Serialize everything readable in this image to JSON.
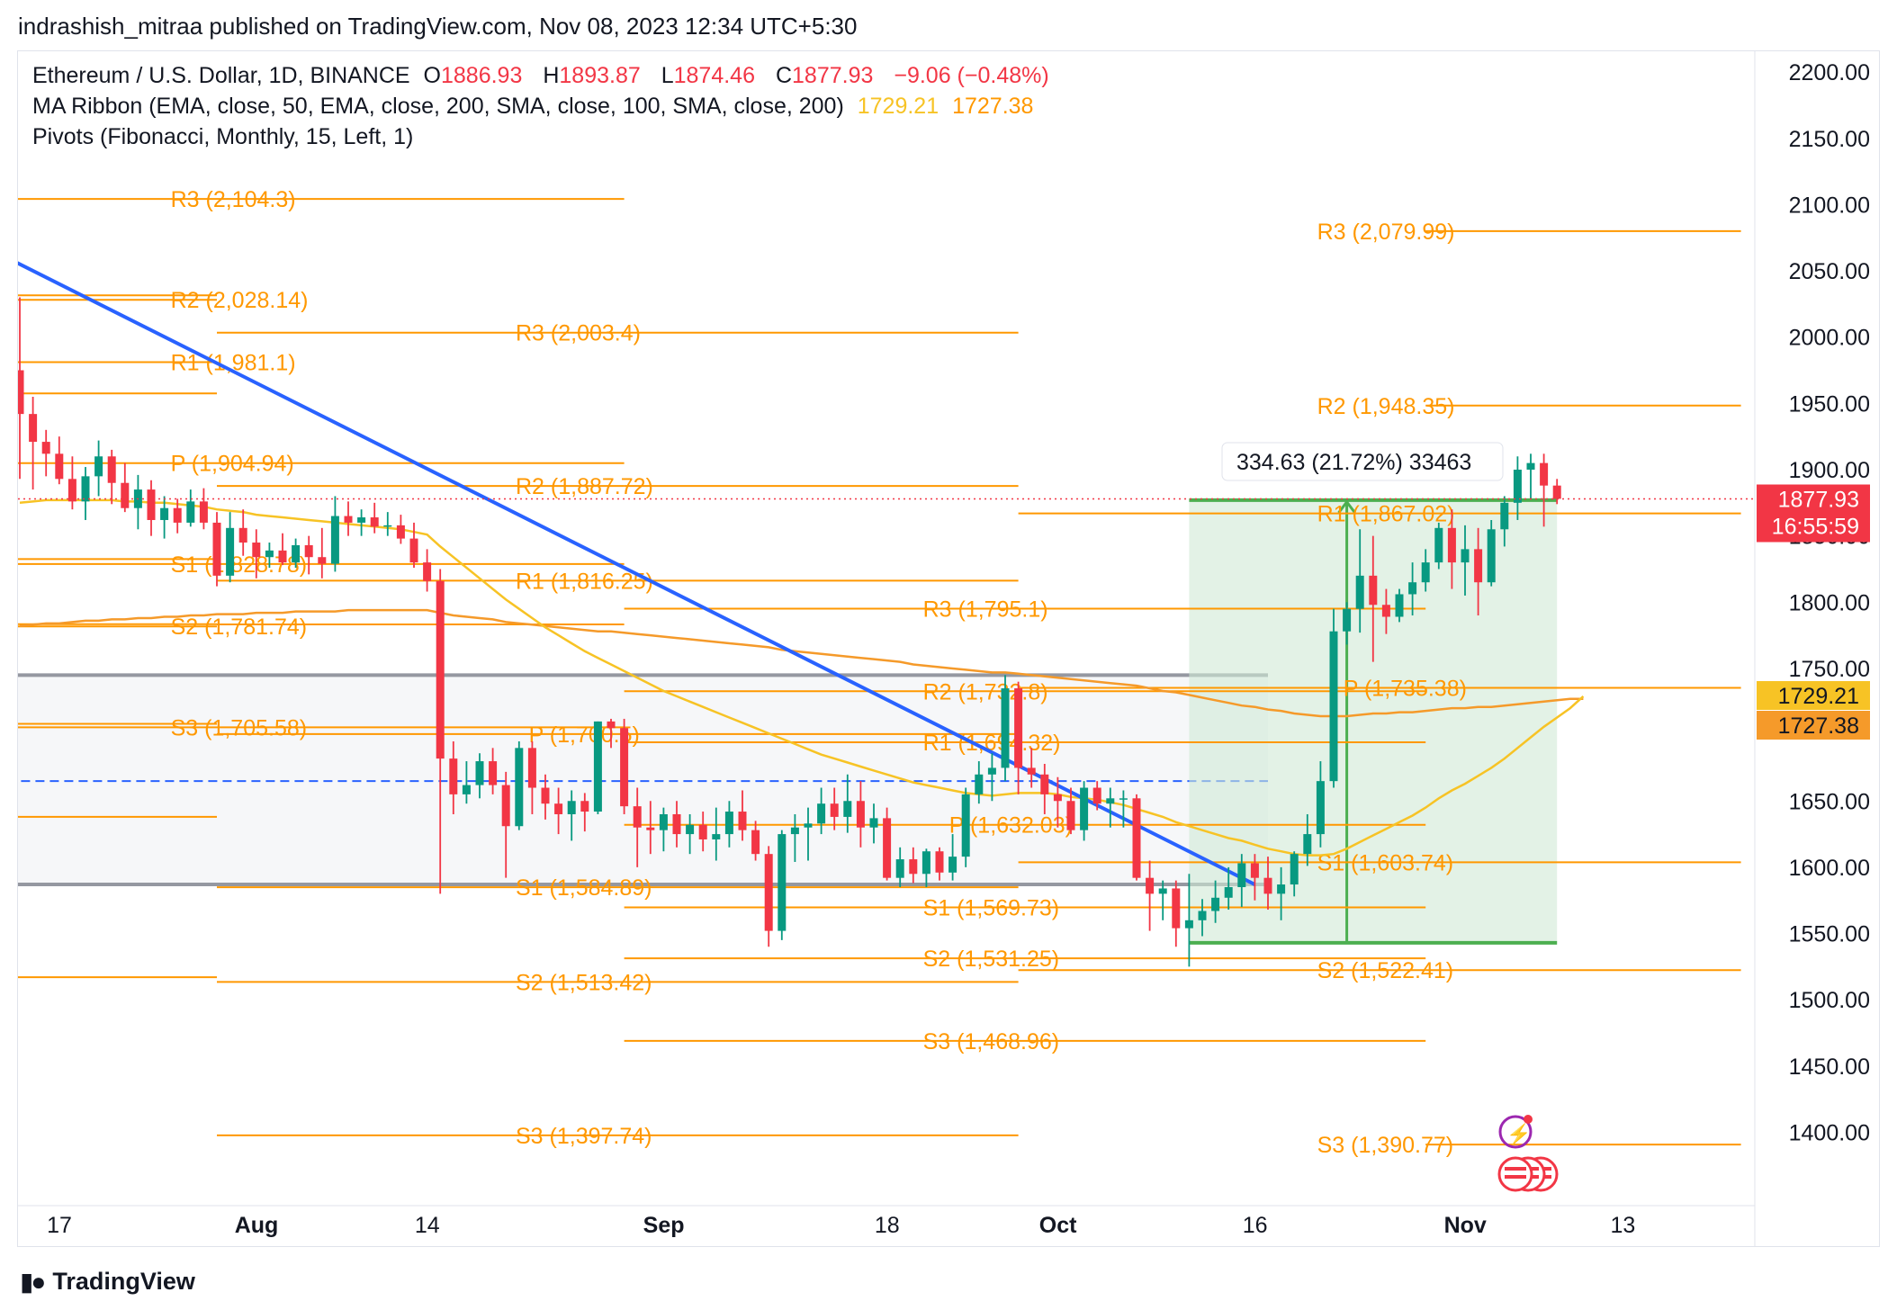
{
  "publisher_line": "indrashish_mitraa published on TradingView.com, Nov 08, 2023 12:34 UTC+5:30",
  "legend": {
    "symbol": "Ethereum / U.S. Dollar, 1D, BINANCE",
    "o_key": "O",
    "o_val": "1886.93",
    "h_key": "H",
    "h_val": "1893.87",
    "l_key": "L",
    "l_val": "1874.46",
    "c_key": "C",
    "c_val": "1877.93",
    "change": "−9.06 (−0.48%)",
    "ma_ribbon": "MA Ribbon (EMA, close, 50, EMA, close, 200, SMA, close, 100, SMA, close, 200)",
    "ma_val1": "1729.21",
    "ma_val2": "1727.38",
    "pivots": "Pivots (Fibonacci, Monthly, 15, Left, 1)"
  },
  "footer": {
    "brand": "TradingView"
  },
  "colors": {
    "up": "#089981",
    "down": "#f23645",
    "pivot": "#ff9800",
    "trendline": "#2962ff",
    "ema50": "#f7c325",
    "ema200": "#f59a2a",
    "range_box": "#9598a1",
    "position_fill": "#d1ead6",
    "position_line": "#4caf50",
    "price_tag": "#f23645"
  },
  "chart_data": {
    "type": "candlestick",
    "ylim": [
      1340,
      2225
    ],
    "y_ticks": [
      "2200.00",
      "2150.00",
      "2100.00",
      "2050.00",
      "2000.00",
      "1950.00",
      "1900.00",
      "1850.00",
      "1800.00",
      "1750.00",
      "1650.00",
      "1600.00",
      "1550.00",
      "1500.00",
      "1450.00",
      "1400.00"
    ],
    "x_ticks": [
      {
        "label": "17",
        "idx": 0,
        "bold": false
      },
      {
        "label": "Aug",
        "idx": 15,
        "bold": true
      },
      {
        "label": "14",
        "idx": 28,
        "bold": false
      },
      {
        "label": "Sep",
        "idx": 46,
        "bold": true
      },
      {
        "label": "18",
        "idx": 63,
        "bold": false
      },
      {
        "label": "Oct",
        "idx": 76,
        "bold": true
      },
      {
        "label": "16",
        "idx": 91,
        "bold": false
      },
      {
        "label": "Nov",
        "idx": 107,
        "bold": true
      },
      {
        "label": "13",
        "idx": 119,
        "bold": false
      }
    ],
    "candles": [
      [
        1975,
        2030,
        1893,
        1942
      ],
      [
        1942,
        1955,
        1885,
        1921
      ],
      [
        1921,
        1930,
        1895,
        1912
      ],
      [
        1912,
        1925,
        1889,
        1893
      ],
      [
        1893,
        1910,
        1870,
        1876
      ],
      [
        1876,
        1902,
        1862,
        1895
      ],
      [
        1895,
        1922,
        1880,
        1910
      ],
      [
        1910,
        1915,
        1874,
        1890
      ],
      [
        1890,
        1905,
        1868,
        1871
      ],
      [
        1871,
        1896,
        1855,
        1885
      ],
      [
        1885,
        1892,
        1850,
        1862
      ],
      [
        1862,
        1880,
        1848,
        1871
      ],
      [
        1871,
        1878,
        1852,
        1860
      ],
      [
        1860,
        1885,
        1857,
        1876
      ],
      [
        1876,
        1886,
        1855,
        1860
      ],
      [
        1860,
        1868,
        1812,
        1820
      ],
      [
        1820,
        1868,
        1815,
        1856
      ],
      [
        1856,
        1870,
        1835,
        1845
      ],
      [
        1845,
        1855,
        1818,
        1834
      ],
      [
        1834,
        1845,
        1826,
        1839
      ],
      [
        1839,
        1852,
        1828,
        1830
      ],
      [
        1830,
        1848,
        1826,
        1843
      ],
      [
        1843,
        1850,
        1821,
        1834
      ],
      [
        1834,
        1856,
        1818,
        1829
      ],
      [
        1829,
        1880,
        1823,
        1865
      ],
      [
        1865,
        1876,
        1850,
        1860
      ],
      [
        1860,
        1870,
        1850,
        1864
      ],
      [
        1864,
        1875,
        1852,
        1857
      ],
      [
        1857,
        1868,
        1850,
        1858
      ],
      [
        1858,
        1866,
        1844,
        1848
      ],
      [
        1848,
        1860,
        1826,
        1830
      ],
      [
        1830,
        1840,
        1808,
        1816
      ],
      [
        1816,
        1825,
        1580,
        1682
      ],
      [
        1682,
        1695,
        1640,
        1655
      ],
      [
        1655,
        1680,
        1648,
        1662
      ],
      [
        1662,
        1686,
        1652,
        1680
      ],
      [
        1680,
        1690,
        1655,
        1662
      ],
      [
        1662,
        1672,
        1592,
        1631
      ],
      [
        1631,
        1695,
        1628,
        1690
      ],
      [
        1690,
        1695,
        1640,
        1660
      ],
      [
        1660,
        1670,
        1636,
        1648
      ],
      [
        1648,
        1660,
        1625,
        1640
      ],
      [
        1640,
        1658,
        1620,
        1650
      ],
      [
        1650,
        1656,
        1627,
        1642
      ],
      [
        1642,
        1710,
        1640,
        1710
      ],
      [
        1710,
        1712,
        1690,
        1705
      ],
      [
        1705,
        1712,
        1640,
        1646
      ],
      [
        1646,
        1660,
        1600,
        1630
      ],
      [
        1630,
        1650,
        1610,
        1628
      ],
      [
        1628,
        1645,
        1612,
        1640
      ],
      [
        1640,
        1650,
        1615,
        1625
      ],
      [
        1625,
        1640,
        1610,
        1632
      ],
      [
        1632,
        1642,
        1612,
        1621
      ],
      [
        1621,
        1645,
        1605,
        1625
      ],
      [
        1625,
        1650,
        1615,
        1642
      ],
      [
        1642,
        1658,
        1620,
        1628
      ],
      [
        1628,
        1635,
        1605,
        1610
      ],
      [
        1610,
        1616,
        1540,
        1552
      ],
      [
        1552,
        1628,
        1545,
        1625
      ],
      [
        1625,
        1640,
        1604,
        1630
      ],
      [
        1630,
        1645,
        1605,
        1633
      ],
      [
        1633,
        1660,
        1625,
        1648
      ],
      [
        1648,
        1660,
        1628,
        1638
      ],
      [
        1638,
        1670,
        1626,
        1650
      ],
      [
        1650,
        1665,
        1615,
        1630
      ],
      [
        1630,
        1648,
        1618,
        1637
      ],
      [
        1637,
        1645,
        1590,
        1592
      ],
      [
        1592,
        1615,
        1585,
        1606
      ],
      [
        1606,
        1615,
        1588,
        1595
      ],
      [
        1595,
        1614,
        1585,
        1612
      ],
      [
        1612,
        1615,
        1590,
        1596
      ],
      [
        1596,
        1625,
        1590,
        1608
      ],
      [
        1608,
        1660,
        1600,
        1655
      ],
      [
        1655,
        1680,
        1648,
        1670
      ],
      [
        1670,
        1686,
        1650,
        1675
      ],
      [
        1675,
        1745,
        1665,
        1735
      ],
      [
        1735,
        1740,
        1655,
        1675
      ],
      [
        1675,
        1690,
        1660,
        1670
      ],
      [
        1670,
        1678,
        1640,
        1655
      ],
      [
        1655,
        1668,
        1630,
        1650
      ],
      [
        1650,
        1660,
        1625,
        1628
      ],
      [
        1628,
        1665,
        1620,
        1660
      ],
      [
        1660,
        1665,
        1643,
        1648
      ],
      [
        1648,
        1660,
        1630,
        1652
      ],
      [
        1652,
        1658,
        1630,
        1652
      ],
      [
        1652,
        1655,
        1590,
        1592
      ],
      [
        1592,
        1605,
        1552,
        1580
      ],
      [
        1580,
        1590,
        1560,
        1584
      ],
      [
        1584,
        1590,
        1540,
        1554
      ],
      [
        1554,
        1595,
        1525,
        1560
      ],
      [
        1560,
        1576,
        1548,
        1567
      ],
      [
        1567,
        1590,
        1558,
        1577
      ],
      [
        1577,
        1600,
        1568,
        1585
      ],
      [
        1585,
        1610,
        1570,
        1603
      ],
      [
        1603,
        1610,
        1575,
        1592
      ],
      [
        1592,
        1608,
        1568,
        1580
      ],
      [
        1580,
        1600,
        1560,
        1587
      ],
      [
        1587,
        1612,
        1578,
        1610
      ],
      [
        1610,
        1640,
        1601,
        1625
      ],
      [
        1625,
        1680,
        1615,
        1665
      ],
      [
        1665,
        1795,
        1660,
        1778
      ],
      [
        1778,
        1800,
        1768,
        1795
      ],
      [
        1795,
        1855,
        1777,
        1820
      ],
      [
        1820,
        1850,
        1755,
        1798
      ],
      [
        1798,
        1810,
        1776,
        1789
      ],
      [
        1789,
        1810,
        1785,
        1806
      ],
      [
        1806,
        1830,
        1790,
        1815
      ],
      [
        1815,
        1840,
        1808,
        1830
      ],
      [
        1830,
        1860,
        1825,
        1856
      ],
      [
        1856,
        1870,
        1810,
        1830
      ],
      [
        1830,
        1858,
        1805,
        1840
      ],
      [
        1840,
        1856,
        1790,
        1815
      ],
      [
        1815,
        1862,
        1812,
        1855
      ],
      [
        1855,
        1880,
        1842,
        1875
      ],
      [
        1875,
        1910,
        1862,
        1900
      ],
      [
        1900,
        1912,
        1878,
        1905
      ],
      [
        1905,
        1912,
        1857,
        1888
      ],
      [
        1888,
        1893,
        1874,
        1878
      ]
    ],
    "ema50": [
      1875,
      1876,
      1877,
      1877,
      1877,
      1877,
      1877,
      1877,
      1876,
      1876,
      1875,
      1875,
      1874,
      1873,
      1872,
      1870,
      1869,
      1868,
      1866,
      1865,
      1864,
      1863,
      1862,
      1861,
      1860,
      1859,
      1858,
      1857,
      1856,
      1855,
      1853,
      1851,
      1842,
      1834,
      1826,
      1818,
      1810,
      1802,
      1795,
      1788,
      1781,
      1775,
      1769,
      1763,
      1758,
      1753,
      1748,
      1743,
      1738,
      1733,
      1729,
      1725,
      1721,
      1717,
      1713,
      1709,
      1705,
      1701,
      1697,
      1693,
      1689,
      1685,
      1682,
      1679,
      1676,
      1673,
      1670,
      1667,
      1664,
      1662,
      1660,
      1658,
      1656,
      1655,
      1654,
      1655,
      1656,
      1656,
      1656,
      1655,
      1653,
      1652,
      1651,
      1649,
      1647,
      1644,
      1641,
      1638,
      1634,
      1631,
      1628,
      1625,
      1622,
      1620,
      1617,
      1614,
      1612,
      1610,
      1609,
      1609,
      1610,
      1614,
      1619,
      1624,
      1629,
      1634,
      1639,
      1645,
      1652,
      1658,
      1663,
      1669,
      1675,
      1682,
      1690,
      1698,
      1706,
      1713,
      1720,
      1729
    ],
    "ema200": [
      1782,
      1783,
      1784,
      1784,
      1785,
      1786,
      1786,
      1787,
      1787,
      1788,
      1788,
      1789,
      1789,
      1790,
      1790,
      1791,
      1791,
      1791,
      1792,
      1792,
      1792,
      1793,
      1793,
      1793,
      1793,
      1794,
      1794,
      1794,
      1794,
      1794,
      1794,
      1794,
      1792,
      1790,
      1789,
      1788,
      1787,
      1785,
      1784,
      1783,
      1782,
      1781,
      1780,
      1779,
      1778,
      1778,
      1777,
      1776,
      1775,
      1774,
      1773,
      1772,
      1771,
      1770,
      1769,
      1768,
      1767,
      1766,
      1764,
      1763,
      1762,
      1761,
      1760,
      1759,
      1758,
      1757,
      1756,
      1755,
      1753,
      1752,
      1751,
      1750,
      1749,
      1748,
      1747,
      1747,
      1746,
      1745,
      1744,
      1743,
      1742,
      1741,
      1740,
      1739,
      1738,
      1737,
      1735,
      1733,
      1732,
      1730,
      1728,
      1726,
      1724,
      1722,
      1721,
      1719,
      1718,
      1716,
      1715,
      1714,
      1714,
      1714,
      1715,
      1716,
      1716,
      1717,
      1717,
      1718,
      1719,
      1720,
      1720,
      1721,
      1721,
      1722,
      1723,
      1724,
      1725,
      1726,
      1727,
      1727
    ],
    "trendline": {
      "from": [
        -1,
        2060
      ],
      "to": [
        94,
        1587
      ]
    },
    "range_box": {
      "from_idx": -1,
      "to_idx": 95,
      "top": 1745,
      "bottom": 1587,
      "mid": 1665
    },
    "position": {
      "from_idx": 89,
      "to_idx": 117,
      "top": 1877,
      "bottom": 1543,
      "arrow_idx": 101,
      "label": "334.63 (21.72%) 33463"
    },
    "price_tag": {
      "price": "1877.93",
      "timer": "16:55:59",
      "value": 1877.93
    },
    "ma_tags": [
      {
        "label": "1729.21",
        "value": 1729.21,
        "color": "#f7c325"
      },
      {
        "label": "1727.38",
        "value": 1727.38,
        "color": "#f59a2a"
      }
    ],
    "pivot_blocks": [
      {
        "from": -1,
        "to": 15,
        "levels": [
          {
            "label": "R3 (2,104.3)",
            "value": 2104.3,
            "lx": 6
          },
          {
            "label": "R2 (2,028.14)",
            "value": 2028.14,
            "lx": 6
          },
          {
            "label": "R1 (1,981.1)",
            "value": 1981.1,
            "lx": 6
          },
          {
            "label": "P (1,904.94)",
            "value": 1904.94,
            "lx": 6
          },
          {
            "label": "S1 (1,828.78)",
            "value": 1828.78,
            "lx": 6
          },
          {
            "label": "S2 (1,781.74)",
            "value": 1781.74,
            "lx": 6
          },
          {
            "label": "S3 (1,705.58)",
            "value": 1705.58,
            "lx": 6
          }
        ],
        "extra_lines": [
          2031.5,
          1957.5,
          1832.5,
          1783.4,
          1708.2,
          1638,
          1517
        ]
      },
      {
        "from": 15,
        "to": 46,
        "levels": [
          {
            "label": "R3 (2,003.4)",
            "value": 2003.4,
            "lx": 35
          },
          {
            "label": "R2 (1,887.72)",
            "value": 1887.72,
            "lx": 35
          },
          {
            "label": "R1 (1,816.25)",
            "value": 1816.25,
            "lx": 35
          },
          {
            "label": "P (1,700.5)",
            "value": 1700.5,
            "lx": 36
          },
          {
            "label": "S1 (1,584.89)",
            "value": 1584.89,
            "lx": 35
          },
          {
            "label": "S2 (1,513.42)",
            "value": 1513.42,
            "lx": 35
          },
          {
            "label": "S3 (1,397.74)",
            "value": 1397.74,
            "lx": 35
          }
        ],
        "extra_lines": [
          2104.3,
          1904.94,
          1828.78,
          1783.2,
          1705.58
        ]
      },
      {
        "from": 46,
        "to": 76,
        "levels": [
          {
            "label": "R3 (1,795.1)",
            "value": 1795.1,
            "lx": 66
          },
          {
            "label": "R2 (1,732.8)",
            "value": 1732.8,
            "lx": 66
          },
          {
            "label": "R1 (1,694.32)",
            "value": 1694.32,
            "lx": 66
          },
          {
            "label": "P (1,632.03)",
            "value": 1632.03,
            "lx": 68
          },
          {
            "label": "S1 (1,569.73)",
            "value": 1569.73,
            "lx": 66
          },
          {
            "label": "S2 (1,531.25)",
            "value": 1531.25,
            "lx": 66
          },
          {
            "label": "S3 (1,468.96)",
            "value": 1468.96,
            "lx": 66
          }
        ],
        "extra_lines": [
          2003.4,
          1887.72,
          1816.25,
          1700.5,
          1584.89,
          1513.42,
          1397.74
        ]
      },
      {
        "from": 76,
        "to": 107,
        "levels": [
          {
            "label": "R1 (1,867.02)",
            "value": 1867.02,
            "lx": 96
          },
          {
            "label": "P (1,735.38)",
            "value": 1735.38,
            "lx": 98
          },
          {
            "label": "S1 (1,603.74)",
            "value": 1603.74,
            "lx": 96
          },
          {
            "label": "S2 (1,522.41)",
            "value": 1522.41,
            "lx": 96
          }
        ],
        "extra_lines": [
          1795.1,
          1732.8,
          1694.32,
          1632.03,
          1569.73,
          1531.25,
          1468.96
        ]
      },
      {
        "from": 107,
        "to": 131,
        "levels": [
          {
            "label": "R3 (2,079.99)",
            "value": 2079.99,
            "lx": 96
          },
          {
            "label": "R2 (1,948.35)",
            "value": 1948.35,
            "lx": 96
          },
          {
            "label": "S3 (1,390.77)",
            "value": 1390.77,
            "lx": 96
          }
        ],
        "extra_lines": [
          1867.02,
          1735.38,
          1603.74,
          1522.41
        ]
      }
    ]
  }
}
